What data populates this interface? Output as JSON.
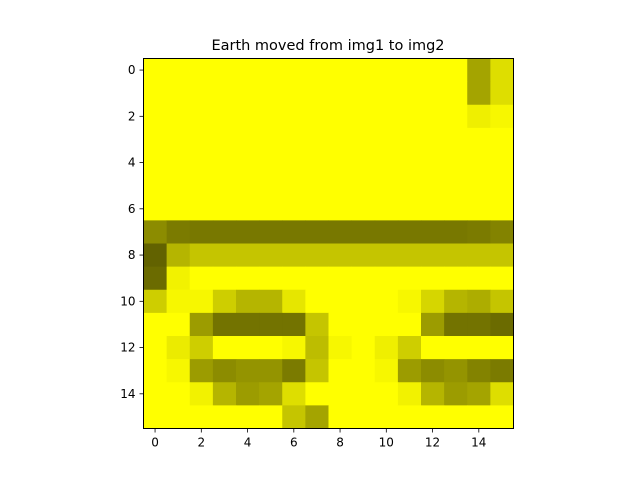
{
  "chart_data": {
    "type": "heatmap",
    "title": "Earth moved from img1 to img2",
    "xlabel": "",
    "ylabel": "",
    "colormap": [
      "#ffff00",
      "#5a5a00"
    ],
    "grid": false,
    "xlim": [
      -0.5,
      15.5
    ],
    "ylim": [
      15.5,
      -0.5
    ],
    "xticks": [
      0,
      2,
      4,
      6,
      8,
      10,
      12,
      14
    ],
    "yticks": [
      0,
      2,
      4,
      6,
      8,
      10,
      12,
      14
    ],
    "rows": 16,
    "cols": 16,
    "value_range": [
      0,
      1
    ],
    "values": [
      [
        0,
        0,
        0,
        0,
        0,
        0,
        0,
        0,
        0,
        0,
        0,
        0,
        0,
        0,
        0.55,
        0.2
      ],
      [
        0,
        0,
        0,
        0,
        0,
        0,
        0,
        0,
        0,
        0,
        0,
        0,
        0,
        0,
        0.55,
        0.2
      ],
      [
        0,
        0,
        0,
        0,
        0,
        0,
        0,
        0,
        0,
        0,
        0,
        0,
        0,
        0,
        0.1,
        0.05
      ],
      [
        0,
        0,
        0,
        0,
        0,
        0,
        0,
        0,
        0,
        0,
        0,
        0,
        0,
        0,
        0,
        0
      ],
      [
        0,
        0,
        0,
        0,
        0,
        0,
        0,
        0,
        0,
        0,
        0,
        0,
        0,
        0,
        0,
        0
      ],
      [
        0,
        0,
        0,
        0,
        0,
        0,
        0,
        0,
        0,
        0,
        0,
        0,
        0,
        0,
        0,
        0
      ],
      [
        0,
        0,
        0,
        0,
        0,
        0,
        0,
        0,
        0,
        0,
        0,
        0,
        0,
        0,
        0,
        0
      ],
      [
        0.7,
        0.8,
        0.82,
        0.82,
        0.82,
        0.82,
        0.82,
        0.82,
        0.82,
        0.82,
        0.82,
        0.82,
        0.82,
        0.82,
        0.8,
        0.75
      ],
      [
        0.95,
        0.45,
        0.35,
        0.35,
        0.35,
        0.35,
        0.35,
        0.35,
        0.35,
        0.35,
        0.35,
        0.35,
        0.35,
        0.35,
        0.35,
        0.35
      ],
      [
        0.9,
        0.08,
        0,
        0,
        0,
        0,
        0,
        0,
        0,
        0,
        0,
        0,
        0,
        0,
        0,
        0
      ],
      [
        0.3,
        0.05,
        0.05,
        0.3,
        0.45,
        0.45,
        0.15,
        0,
        0,
        0,
        0,
        0.05,
        0.25,
        0.45,
        0.5,
        0.35
      ],
      [
        0,
        0,
        0.6,
        0.85,
        0.85,
        0.85,
        0.85,
        0.35,
        0,
        0,
        0,
        0,
        0.6,
        0.85,
        0.85,
        0.9
      ],
      [
        0,
        0.12,
        0.3,
        0,
        0,
        0,
        0.05,
        0.4,
        0.05,
        0,
        0.1,
        0.3,
        0,
        0,
        0,
        0
      ],
      [
        0,
        0.05,
        0.6,
        0.7,
        0.65,
        0.65,
        0.8,
        0.35,
        0,
        0,
        0.05,
        0.6,
        0.7,
        0.65,
        0.75,
        0.8
      ],
      [
        0,
        0,
        0.08,
        0.45,
        0.6,
        0.55,
        0.2,
        0,
        0,
        0,
        0,
        0.08,
        0.45,
        0.6,
        0.55,
        0.2
      ],
      [
        0,
        0,
        0,
        0,
        0,
        0,
        0.35,
        0.55,
        0,
        0,
        0,
        0,
        0,
        0,
        0,
        0
      ]
    ]
  }
}
